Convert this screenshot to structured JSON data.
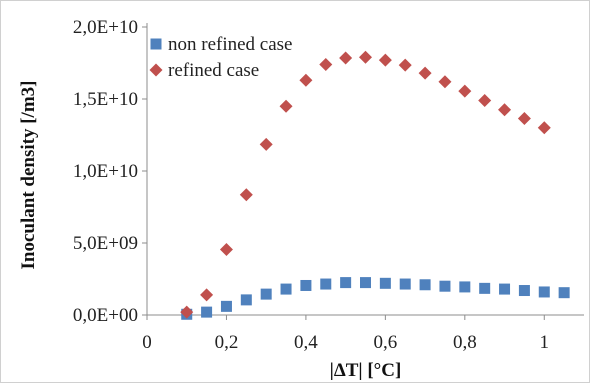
{
  "chart_data": {
    "type": "scatter",
    "xlabel": "|ΔT| [°C]",
    "ylabel": "Inoculant density [/m3]",
    "xlim": [
      0,
      1.1
    ],
    "ylim": [
      0,
      20000000000
    ],
    "x_ticks": [
      0,
      0.2,
      0.4,
      0.6,
      0.8,
      1
    ],
    "x_tick_labels": [
      "0",
      "0,2",
      "0,4",
      "0,6",
      "0,8",
      "1"
    ],
    "y_ticks": [
      0,
      5000000000,
      10000000000,
      15000000000,
      20000000000
    ],
    "y_tick_labels": [
      "0,0E+00",
      "5,0E+09",
      "1,0E+10",
      "1,5E+10",
      "2,0E+10"
    ],
    "grid": false,
    "legend_position": "top-left",
    "series": [
      {
        "name": "non refined case",
        "marker": "square",
        "color": "#4f81bd",
        "x": [
          0.1,
          0.15,
          0.2,
          0.25,
          0.3,
          0.35,
          0.4,
          0.45,
          0.5,
          0.55,
          0.6,
          0.65,
          0.7,
          0.75,
          0.8,
          0.85,
          0.9,
          0.95,
          1.0,
          1.05
        ],
        "y": [
          50000000,
          200000000,
          600000000,
          1050000000,
          1450000000,
          1800000000,
          2050000000,
          2150000000,
          2250000000,
          2250000000,
          2200000000,
          2150000000,
          2100000000,
          2000000000,
          1950000000,
          1850000000,
          1800000000,
          1700000000,
          1600000000,
          1550000000
        ]
      },
      {
        "name": "refined case",
        "marker": "diamond",
        "color": "#c0504d",
        "x": [
          0.1,
          0.15,
          0.2,
          0.25,
          0.3,
          0.35,
          0.4,
          0.45,
          0.5,
          0.55,
          0.6,
          0.65,
          0.7,
          0.75,
          0.8,
          0.85,
          0.9,
          0.95,
          1.0
        ],
        "y": [
          200000000,
          1400000000,
          4550000000,
          8350000000,
          11850000000,
          14500000000,
          16300000000,
          17400000000,
          17850000000,
          17900000000,
          17700000000,
          17350000000,
          16800000000,
          16200000000,
          15550000000,
          14900000000,
          14250000000,
          13650000000,
          13000000000
        ]
      }
    ]
  }
}
